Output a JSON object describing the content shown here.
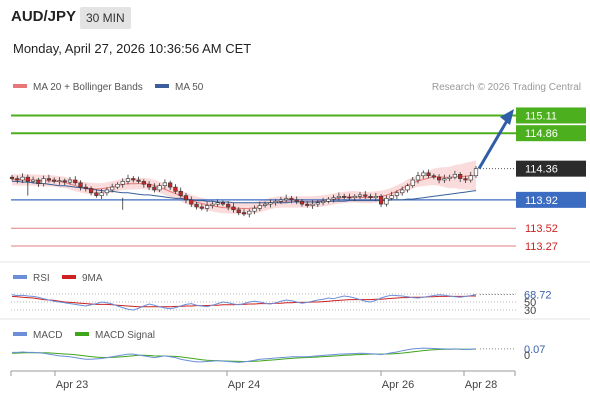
{
  "header": {
    "symbol": "AUD/JPY",
    "timeframe": "30 MIN",
    "datetime": "Monday, April 27, 2026 10:36:56 AM CET"
  },
  "legend": {
    "ma20_label": "MA 20 + Bollinger Bands",
    "ma50_label": "MA 50",
    "credit": "Research © 2026 Trading Central"
  },
  "colors": {
    "resistance": "#4caf1e",
    "support_line": "#3c6bc2",
    "support_levels": "#e08080",
    "last_price_bg": "#2b2b2b",
    "arrow": "#2f5da8",
    "candle_up": "#2e7d32",
    "candle_down": "#c62828",
    "bollinger_fill": "#fbdcdc",
    "ma20": "#e87878",
    "ma50": "#3a5f9a",
    "rsi": "#6a8fd8",
    "rsi_ma": "#cc2222",
    "macd": "#6a8fd8",
    "macd_signal": "#3fa51a"
  },
  "chart_data": {
    "type": "candlestick",
    "ylim": [
      113.1,
      115.3
    ],
    "x_ticks": [
      "Apr 23",
      "Apr 24",
      "Apr 26",
      "Apr 28"
    ],
    "levels": [
      {
        "value": 115.11,
        "label": "115.11",
        "kind": "resistance"
      },
      {
        "value": 114.86,
        "label": "114.86",
        "kind": "resistance"
      },
      {
        "value": 114.36,
        "label": "114.36",
        "kind": "last"
      },
      {
        "value": 113.92,
        "label": "113.92",
        "kind": "pivot"
      },
      {
        "value": 113.52,
        "label": "113.52",
        "kind": "support"
      },
      {
        "value": 113.27,
        "label": "113.27",
        "kind": "support"
      }
    ],
    "close": [
      114.22,
      114.2,
      114.24,
      114.18,
      114.2,
      114.15,
      114.22,
      114.2,
      114.18,
      114.19,
      114.17,
      114.2,
      114.16,
      114.1,
      114.08,
      114.02,
      113.98,
      114.02,
      114.06,
      114.1,
      114.14,
      114.18,
      114.22,
      114.2,
      114.18,
      114.14,
      114.1,
      114.06,
      114.12,
      114.16,
      114.1,
      114.04,
      113.98,
      113.92,
      113.86,
      113.82,
      113.8,
      113.84,
      113.86,
      113.88,
      113.86,
      113.82,
      113.78,
      113.74,
      113.72,
      113.76,
      113.8,
      113.84,
      113.86,
      113.88,
      113.9,
      113.92,
      113.94,
      113.92,
      113.9,
      113.86,
      113.84,
      113.86,
      113.88,
      113.9,
      113.93,
      113.95,
      113.97,
      113.96,
      113.95,
      113.97,
      113.99,
      113.97,
      113.95,
      113.97,
      113.86,
      113.94,
      113.98,
      114.02,
      114.06,
      114.12,
      114.2,
      114.26,
      114.3,
      114.26,
      114.24,
      114.2,
      114.22,
      114.24,
      114.28,
      114.22,
      114.2,
      114.26,
      114.36
    ],
    "ma50": [
      114.18,
      114.18,
      114.17,
      114.17,
      114.16,
      114.15,
      114.15,
      114.14,
      114.13,
      114.12,
      114.12,
      114.11,
      114.1,
      114.09,
      114.08,
      114.07,
      114.06,
      114.05,
      114.04,
      114.04,
      114.03,
      114.02,
      114.02,
      114.01,
      114.0,
      113.99,
      113.99,
      113.98,
      113.97,
      113.96,
      113.95,
      113.94,
      113.94,
      113.93,
      113.92,
      113.91,
      113.91,
      113.9,
      113.9,
      113.89,
      113.89,
      113.89,
      113.88,
      113.88,
      113.88,
      113.88,
      113.88,
      113.88,
      113.88,
      113.88,
      113.88,
      113.88,
      113.88,
      113.89,
      113.89,
      113.89,
      113.89,
      113.89,
      113.89,
      113.9,
      113.9,
      113.9,
      113.9,
      113.9,
      113.91,
      113.91,
      113.91,
      113.91,
      113.91,
      113.91,
      113.91,
      113.91,
      113.92,
      113.92,
      113.92,
      113.93,
      113.93,
      113.94,
      113.95,
      113.96,
      113.97,
      113.98,
      113.99,
      114.0,
      114.01,
      114.02,
      114.03,
      114.04,
      114.05
    ],
    "rsi_panel": {
      "name_rsi": "RSI",
      "name_ma": "9MA",
      "ylim": [
        20,
        80
      ],
      "levels": [
        70,
        50,
        30
      ],
      "level_labels": [
        "50",
        "30"
      ],
      "last_value": 68.72,
      "last_label": "68.72",
      "rsi": [
        68,
        66,
        67,
        65,
        64,
        62,
        58,
        55,
        52,
        50,
        48,
        46,
        44,
        42,
        40,
        43,
        46,
        50,
        48,
        45,
        40,
        36,
        32,
        30,
        34,
        40,
        45,
        42,
        38,
        35,
        33,
        36,
        40,
        44,
        46,
        42,
        40,
        38,
        42,
        46,
        50,
        48,
        45,
        43,
        46,
        50,
        52,
        50,
        47,
        45,
        48,
        52,
        55,
        53,
        50,
        47,
        49,
        52,
        55,
        57,
        60,
        58,
        62,
        65,
        63,
        60,
        56,
        52,
        50,
        54,
        60,
        64,
        67,
        66,
        65,
        63,
        61,
        60,
        62,
        64,
        66,
        68,
        67,
        65,
        63,
        62,
        64,
        66,
        68.72
      ],
      "ma": [
        64,
        63,
        62,
        61,
        60,
        58,
        56,
        55,
        54,
        52,
        50,
        49,
        48,
        47,
        46,
        45,
        44,
        44,
        44,
        43,
        42,
        41,
        40,
        39,
        38,
        38,
        38,
        38,
        38,
        38,
        38,
        39,
        39,
        40,
        40,
        41,
        41,
        41,
        42,
        42,
        43,
        43,
        43,
        44,
        44,
        45,
        45,
        46,
        46,
        46,
        47,
        47,
        48,
        48,
        49,
        49,
        49,
        50,
        50,
        51,
        52,
        53,
        54,
        55,
        56,
        56,
        56,
        56,
        56,
        57,
        57,
        58,
        59,
        60,
        61,
        61,
        62,
        62,
        62,
        63,
        63,
        64,
        64,
        64,
        64,
        64,
        64,
        65,
        65
      ]
    },
    "macd_panel": {
      "name_macd": "MACD",
      "name_signal": "MACD Signal",
      "ylim": [
        -0.15,
        0.15
      ],
      "zero_label": "0",
      "last_value": 0.07,
      "last_label": "0.07",
      "macd": [
        0.03,
        0.03,
        0.035,
        0.03,
        0.03,
        0.025,
        0.02,
        0.01,
        0.0,
        -0.01,
        -0.015,
        -0.02,
        -0.03,
        -0.04,
        -0.05,
        -0.05,
        -0.045,
        -0.04,
        -0.03,
        -0.02,
        -0.01,
        0.0,
        0.01,
        0.01,
        0.0,
        -0.01,
        -0.02,
        -0.03,
        -0.02,
        -0.01,
        -0.02,
        -0.03,
        -0.05,
        -0.06,
        -0.07,
        -0.08,
        -0.08,
        -0.075,
        -0.07,
        -0.065,
        -0.07,
        -0.075,
        -0.08,
        -0.085,
        -0.08,
        -0.07,
        -0.06,
        -0.05,
        -0.045,
        -0.04,
        -0.035,
        -0.03,
        -0.025,
        -0.02,
        -0.02,
        -0.02,
        -0.02,
        -0.015,
        -0.01,
        -0.005,
        0.0,
        0.005,
        0.01,
        0.012,
        0.014,
        0.016,
        0.02,
        0.018,
        0.015,
        0.012,
        0.005,
        0.015,
        0.025,
        0.035,
        0.05,
        0.06,
        0.07,
        0.075,
        0.08,
        0.078,
        0.075,
        0.072,
        0.07,
        0.068,
        0.07,
        0.066,
        0.064,
        0.068,
        0.07
      ],
      "signal": [
        0.02,
        0.022,
        0.024,
        0.026,
        0.027,
        0.027,
        0.026,
        0.024,
        0.02,
        0.016,
        0.012,
        0.008,
        0.002,
        -0.005,
        -0.012,
        -0.018,
        -0.024,
        -0.028,
        -0.03,
        -0.028,
        -0.024,
        -0.02,
        -0.014,
        -0.008,
        -0.004,
        -0.004,
        -0.006,
        -0.01,
        -0.012,
        -0.012,
        -0.014,
        -0.016,
        -0.022,
        -0.03,
        -0.038,
        -0.046,
        -0.054,
        -0.06,
        -0.064,
        -0.066,
        -0.068,
        -0.07,
        -0.072,
        -0.074,
        -0.075,
        -0.075,
        -0.073,
        -0.069,
        -0.064,
        -0.059,
        -0.054,
        -0.049,
        -0.044,
        -0.039,
        -0.035,
        -0.032,
        -0.029,
        -0.026,
        -0.023,
        -0.019,
        -0.016,
        -0.012,
        -0.008,
        -0.004,
        -0.001,
        0.002,
        0.005,
        0.008,
        0.01,
        0.011,
        0.01,
        0.011,
        0.013,
        0.017,
        0.022,
        0.029,
        0.036,
        0.044,
        0.051,
        0.057,
        0.061,
        0.064,
        0.066,
        0.067,
        0.068,
        0.068,
        0.067,
        0.067,
        0.068
      ]
    }
  }
}
